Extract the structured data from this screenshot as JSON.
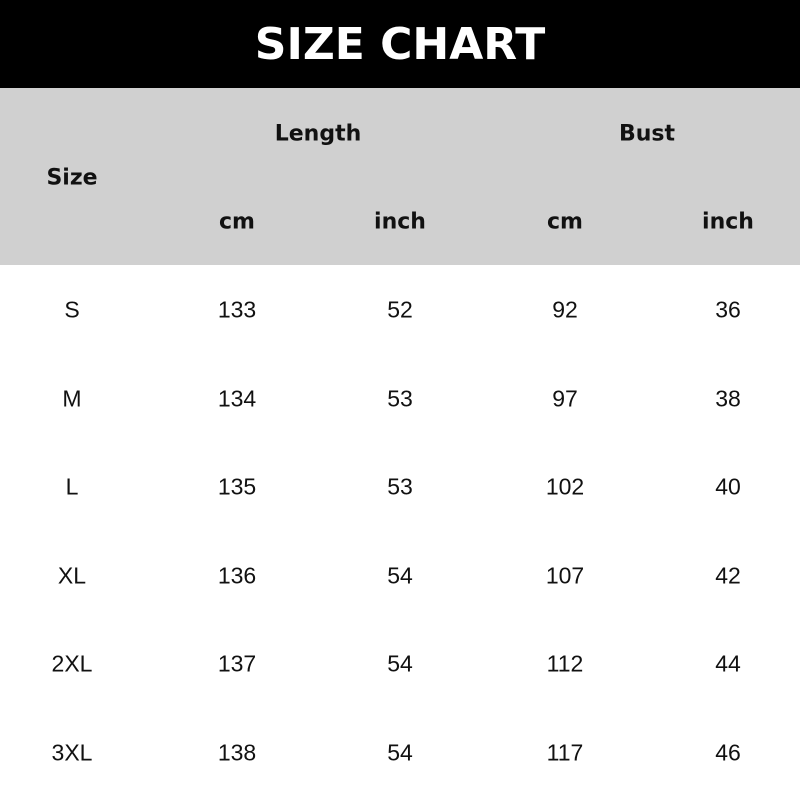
{
  "title": "SIZE CHART",
  "header": {
    "size": "Size",
    "length": "Length",
    "bust": "Bust",
    "units": [
      "cm",
      "inch",
      "cm",
      "inch"
    ]
  },
  "rows": [
    [
      "S",
      "133",
      "52",
      "92",
      "36"
    ],
    [
      "M",
      "134",
      "53",
      "97",
      "38"
    ],
    [
      "L",
      "135",
      "53",
      "102",
      "40"
    ],
    [
      "XL",
      "136",
      "54",
      "107",
      "42"
    ],
    [
      "2XL",
      "137",
      "54",
      "112",
      "44"
    ],
    [
      "3XL",
      "138",
      "54",
      "117",
      "46"
    ]
  ],
  "colors": {
    "title_bg": "#000000",
    "header_bg": "#d0d0d0"
  }
}
